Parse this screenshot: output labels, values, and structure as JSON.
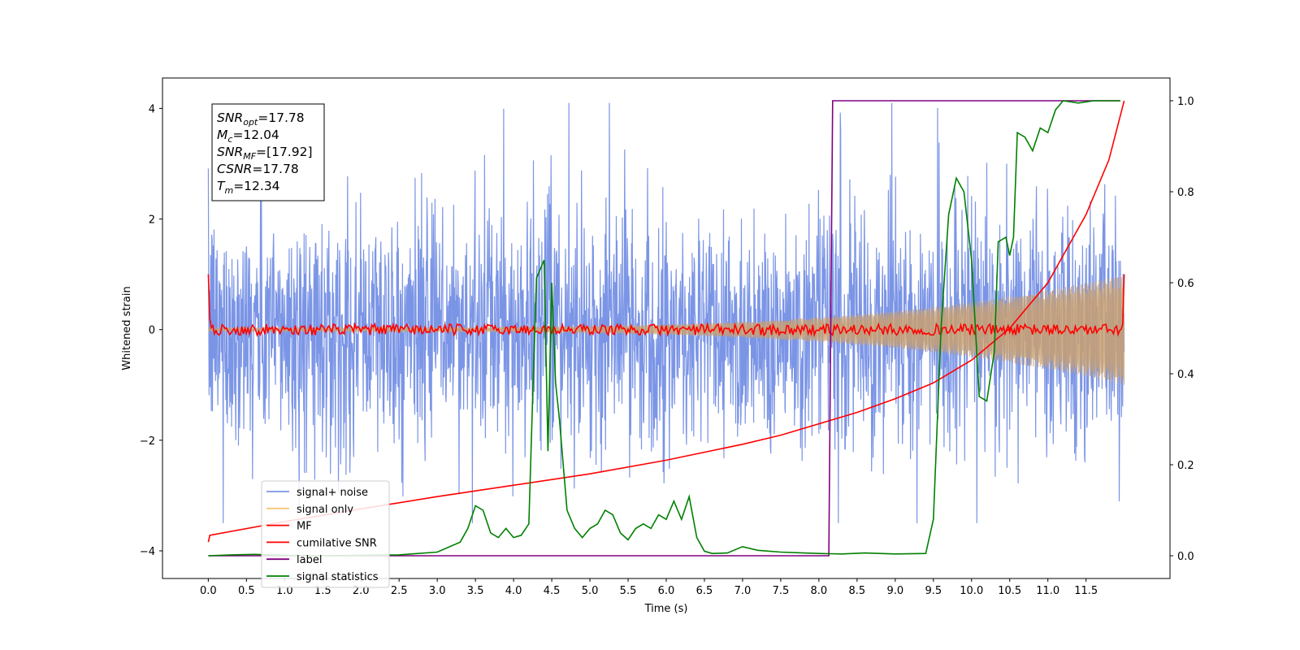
{
  "chart_data": {
    "type": "line",
    "xlabel": "Time (s)",
    "ylabel": "Whitened strain",
    "xlim": [
      -0.6,
      12.6
    ],
    "ylim": [
      -4.5,
      4.55
    ],
    "y2lim": [
      -0.05,
      1.05
    ],
    "x_ticks": [
      0.0,
      0.5,
      1.0,
      1.5,
      2.0,
      2.5,
      3.0,
      3.5,
      4.0,
      4.5,
      5.0,
      5.5,
      6.0,
      6.5,
      7.0,
      7.5,
      8.0,
      8.5,
      9.0,
      9.5,
      10.0,
      10.5,
      11.0,
      11.5
    ],
    "x_tick_labels": [
      "0.0",
      "0.5",
      "1.0",
      "1.5",
      "2.0",
      "2.5",
      "3.0",
      "3.5",
      "4.0",
      "4.5",
      "5.0",
      "5.5",
      "6.0",
      "6.5",
      "7.0",
      "7.5",
      "8.0",
      "8.5",
      "9.0",
      "9.5",
      "10.0",
      "10.5",
      "11.0",
      "11.5"
    ],
    "y_ticks": [
      -4,
      -2,
      0,
      2,
      4
    ],
    "y_tick_labels": [
      "−4",
      "−2",
      "0",
      "2",
      "4"
    ],
    "y2_ticks": [
      0.0,
      0.2,
      0.4,
      0.6,
      0.8,
      1.0
    ],
    "y2_tick_labels": [
      "0.0",
      "0.2",
      "0.4",
      "0.6",
      "0.8",
      "1.0"
    ],
    "grid": false,
    "legend_position": "lower-left",
    "annotation": {
      "lines": [
        {
          "base": "SNR",
          "sub": "opt",
          "value": "=17.78"
        },
        {
          "base": "M",
          "sub": "c",
          "value": "=12.04"
        },
        {
          "base": "SNR",
          "sub": "MF",
          "value": "=[17.92]"
        },
        {
          "base": "CSNR",
          "sub": "",
          "value": "=17.78"
        },
        {
          "base": "T",
          "sub": "m",
          "value": "=12.34"
        }
      ]
    },
    "series": [
      {
        "name": "signal+ noise",
        "color": "#7b95e6",
        "axis": "left",
        "style": "dense-noise",
        "x_range": [
          0.0,
          12.0
        ],
        "noise_std": 1.0,
        "y_extent": [
          -3.5,
          4.1
        ]
      },
      {
        "name": "signal only",
        "color": "#f5c87a",
        "axis": "left",
        "style": "chirp",
        "x_range": [
          0.0,
          12.0
        ],
        "amplitude_start": 0.03,
        "amplitude_end": 1.0
      },
      {
        "name": "MF",
        "color": "#ff0000",
        "axis": "left",
        "style": "mf",
        "x_range": [
          0.0,
          12.0
        ],
        "start_value": 1.0,
        "end_value": 1.0
      },
      {
        "name": "cumilative SNR",
        "color": "#ff0000",
        "axis": "right",
        "x": [
          0.0,
          0.02,
          1.0,
          2.0,
          3.0,
          4.0,
          5.0,
          6.0,
          7.0,
          7.5,
          8.0,
          8.5,
          9.0,
          9.5,
          10.0,
          10.5,
          11.0,
          11.5,
          11.8,
          12.0
        ],
        "values": [
          0.03,
          0.045,
          0.075,
          0.103,
          0.13,
          0.155,
          0.18,
          0.21,
          0.245,
          0.265,
          0.29,
          0.315,
          0.345,
          0.38,
          0.43,
          0.5,
          0.6,
          0.75,
          0.87,
          1.0
        ]
      },
      {
        "name": "label",
        "color": "#800080",
        "axis": "right",
        "x": [
          0.0,
          8.13,
          8.13,
          8.18,
          11.95
        ],
        "values": [
          0.0,
          0.0,
          0.0,
          1.0,
          1.0
        ]
      },
      {
        "name": "signal statistics",
        "color": "#008000",
        "axis": "right",
        "x": [
          0.0,
          0.3,
          0.6,
          1.0,
          1.5,
          2.0,
          2.5,
          3.0,
          3.3,
          3.4,
          3.5,
          3.6,
          3.7,
          3.8,
          3.9,
          4.0,
          4.1,
          4.2,
          4.25,
          4.3,
          4.4,
          4.45,
          4.5,
          4.55,
          4.6,
          4.7,
          4.8,
          4.9,
          5.0,
          5.1,
          5.2,
          5.3,
          5.4,
          5.5,
          5.6,
          5.7,
          5.8,
          5.9,
          6.0,
          6.1,
          6.2,
          6.3,
          6.4,
          6.5,
          6.6,
          6.8,
          7.0,
          7.2,
          7.5,
          7.8,
          8.0,
          8.3,
          8.6,
          9.0,
          9.4,
          9.5,
          9.6,
          9.7,
          9.8,
          9.9,
          10.0,
          10.1,
          10.2,
          10.3,
          10.35,
          10.45,
          10.5,
          10.55,
          10.6,
          10.7,
          10.8,
          10.9,
          11.0,
          11.1,
          11.2,
          11.4,
          11.6,
          11.8,
          11.95
        ],
        "values": [
          0.0,
          0.002,
          0.003,
          0.001,
          0.0,
          0.001,
          0.002,
          0.008,
          0.03,
          0.06,
          0.11,
          0.1,
          0.05,
          0.04,
          0.06,
          0.04,
          0.045,
          0.07,
          0.35,
          0.61,
          0.65,
          0.23,
          0.6,
          0.38,
          0.3,
          0.1,
          0.06,
          0.04,
          0.06,
          0.07,
          0.1,
          0.09,
          0.05,
          0.035,
          0.06,
          0.07,
          0.06,
          0.09,
          0.08,
          0.12,
          0.08,
          0.13,
          0.04,
          0.01,
          0.005,
          0.006,
          0.02,
          0.012,
          0.008,
          0.006,
          0.005,
          0.004,
          0.006,
          0.004,
          0.005,
          0.08,
          0.5,
          0.75,
          0.83,
          0.8,
          0.65,
          0.35,
          0.34,
          0.45,
          0.69,
          0.7,
          0.66,
          0.7,
          0.93,
          0.92,
          0.89,
          0.94,
          0.93,
          0.98,
          1.0,
          0.995,
          1.0,
          1.0,
          1.0
        ]
      }
    ]
  }
}
